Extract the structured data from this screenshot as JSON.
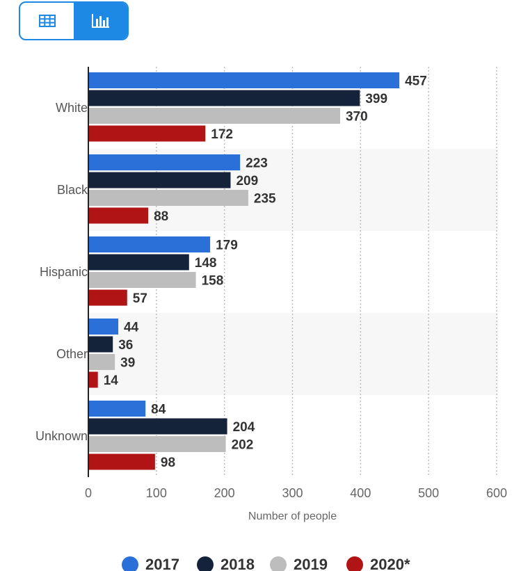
{
  "view_toggle": {
    "options": [
      {
        "icon": "table-icon",
        "active": false
      },
      {
        "icon": "bar-chart-icon",
        "active": true
      }
    ]
  },
  "chart_data": {
    "type": "bar",
    "orientation": "horizontal",
    "categories": [
      "White",
      "Black",
      "Hispanic",
      "Other",
      "Unknown"
    ],
    "series": [
      {
        "name": "2017",
        "color": "#2b6fd8",
        "values": [
          457,
          223,
          179,
          44,
          84
        ]
      },
      {
        "name": "2018",
        "color": "#14223a",
        "values": [
          399,
          209,
          148,
          36,
          204
        ]
      },
      {
        "name": "2019",
        "color": "#bdbdbd",
        "values": [
          370,
          235,
          158,
          39,
          202
        ]
      },
      {
        "name": "2020*",
        "color": "#b01414",
        "values": [
          172,
          88,
          57,
          14,
          98
        ]
      }
    ],
    "xlabel": "Number of people",
    "ylabel": "",
    "xlim": [
      0,
      600
    ],
    "xticks": [
      "0",
      "100",
      "200",
      "300",
      "400",
      "500",
      "600"
    ],
    "grid": "vertical dotted",
    "legend_position": "bottom",
    "data_labels": true
  }
}
